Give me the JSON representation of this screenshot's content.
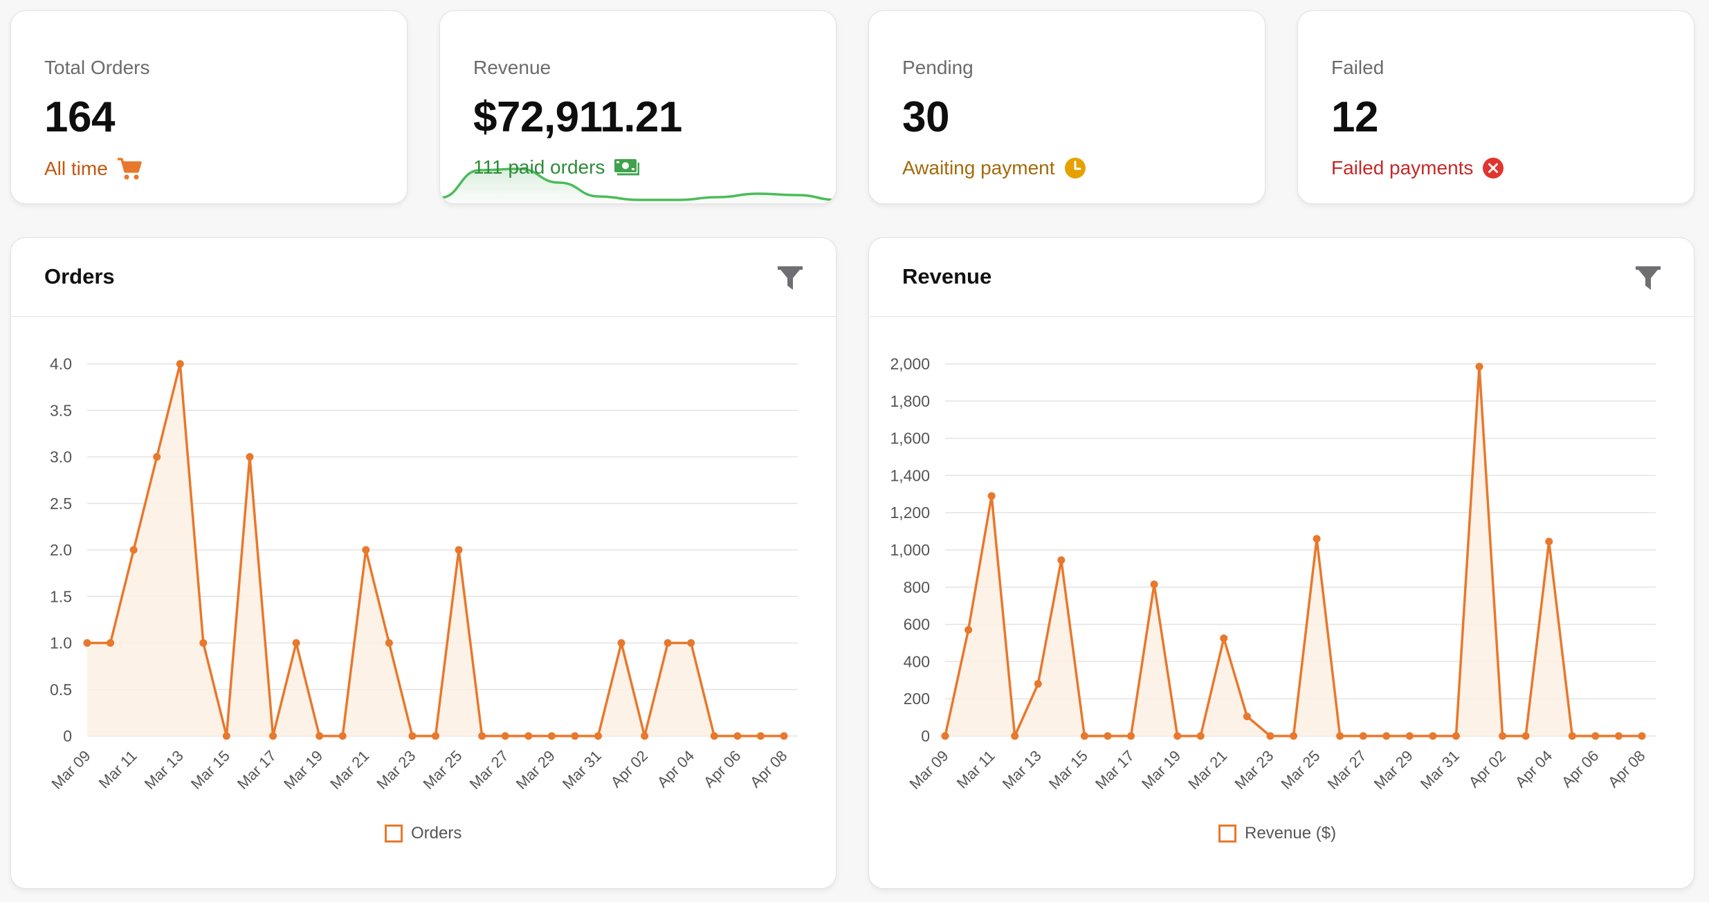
{
  "colors": {
    "orange_accent": "#e8782c",
    "orange_text": "#c2570f",
    "green": "#3fa34d",
    "amber": "#a36a0a",
    "amber_icon": "#e6a100",
    "red": "#c62828"
  },
  "stats": [
    {
      "label": "Total Orders",
      "value": "164",
      "sub": "All time",
      "icon": "cart-icon"
    },
    {
      "label": "Revenue",
      "value": "$72,911.21",
      "sub": "111 paid orders",
      "icon": "cash-icon"
    },
    {
      "label": "Pending",
      "value": "30",
      "sub": "Awaiting payment",
      "icon": "clock-icon"
    },
    {
      "label": "Failed",
      "value": "12",
      "sub": "Failed payments",
      "icon": "error-icon"
    }
  ],
  "revenue_sparkline": [
    8,
    48,
    50,
    30,
    10,
    5,
    5,
    9,
    14,
    12,
    5
  ],
  "orders_panel": {
    "title": "Orders",
    "legend": "Orders"
  },
  "revenue_panel": {
    "title": "Revenue",
    "legend": "Revenue ($)"
  },
  "chart_data": [
    {
      "type": "area",
      "title": "Orders",
      "x": [
        "Mar 09",
        "Mar 10",
        "Mar 11",
        "Mar 12",
        "Mar 13",
        "Mar 14",
        "Mar 15",
        "Mar 16",
        "Mar 17",
        "Mar 18",
        "Mar 19",
        "Mar 20",
        "Mar 21",
        "Mar 22",
        "Mar 23",
        "Mar 24",
        "Mar 25",
        "Mar 26",
        "Mar 27",
        "Mar 28",
        "Mar 29",
        "Mar 30",
        "Mar 31",
        "Apr 01",
        "Apr 02",
        "Apr 03",
        "Apr 04",
        "Apr 05",
        "Apr 06",
        "Apr 07",
        "Apr 08"
      ],
      "x_tick_labels": [
        "Mar 09",
        "Mar 11",
        "Mar 13",
        "Mar 15",
        "Mar 17",
        "Mar 19",
        "Mar 21",
        "Mar 23",
        "Mar 25",
        "Mar 27",
        "Mar 29",
        "Mar 31",
        "Apr 02",
        "Apr 04",
        "Apr 06",
        "Apr 08"
      ],
      "series": [
        {
          "name": "Orders",
          "values": [
            1,
            1,
            2,
            3,
            4,
            1,
            0,
            3,
            0,
            1,
            0,
            0,
            2,
            1,
            0,
            0,
            2,
            0,
            0,
            0,
            0,
            0,
            0,
            1,
            0,
            1,
            1,
            0,
            0,
            0,
            0
          ]
        }
      ],
      "y_ticks": [
        "0",
        "0.5",
        "1.0",
        "1.5",
        "2.0",
        "2.5",
        "3.0",
        "3.5",
        "4.0"
      ],
      "ylim": [
        0,
        4
      ],
      "grid": true,
      "legend_position": "bottom"
    },
    {
      "type": "area",
      "title": "Revenue",
      "x": [
        "Mar 09",
        "Mar 10",
        "Mar 11",
        "Mar 12",
        "Mar 13",
        "Mar 14",
        "Mar 15",
        "Mar 16",
        "Mar 17",
        "Mar 18",
        "Mar 19",
        "Mar 20",
        "Mar 21",
        "Mar 22",
        "Mar 23",
        "Mar 24",
        "Mar 25",
        "Mar 26",
        "Mar 27",
        "Mar 28",
        "Mar 29",
        "Mar 30",
        "Mar 31",
        "Apr 01",
        "Apr 02",
        "Apr 03",
        "Apr 04",
        "Apr 05",
        "Apr 06",
        "Apr 07",
        "Apr 08"
      ],
      "x_tick_labels": [
        "Mar 09",
        "Mar 11",
        "Mar 13",
        "Mar 15",
        "Mar 17",
        "Mar 19",
        "Mar 21",
        "Mar 23",
        "Mar 25",
        "Mar 27",
        "Mar 29",
        "Mar 31",
        "Apr 02",
        "Apr 04",
        "Apr 06",
        "Apr 08"
      ],
      "series": [
        {
          "name": "Revenue ($)",
          "values": [
            0,
            570,
            1290,
            0,
            280,
            945,
            0,
            0,
            0,
            815,
            0,
            0,
            525,
            105,
            0,
            0,
            1060,
            0,
            0,
            0,
            0,
            0,
            0,
            1985,
            0,
            0,
            1045,
            0,
            0,
            0,
            0
          ]
        }
      ],
      "y_ticks": [
        "0",
        "200",
        "400",
        "600",
        "800",
        "1,000",
        "1,200",
        "1,400",
        "1,600",
        "1,800",
        "2,000"
      ],
      "ylim": [
        0,
        2000
      ],
      "grid": true,
      "legend_position": "bottom"
    }
  ]
}
